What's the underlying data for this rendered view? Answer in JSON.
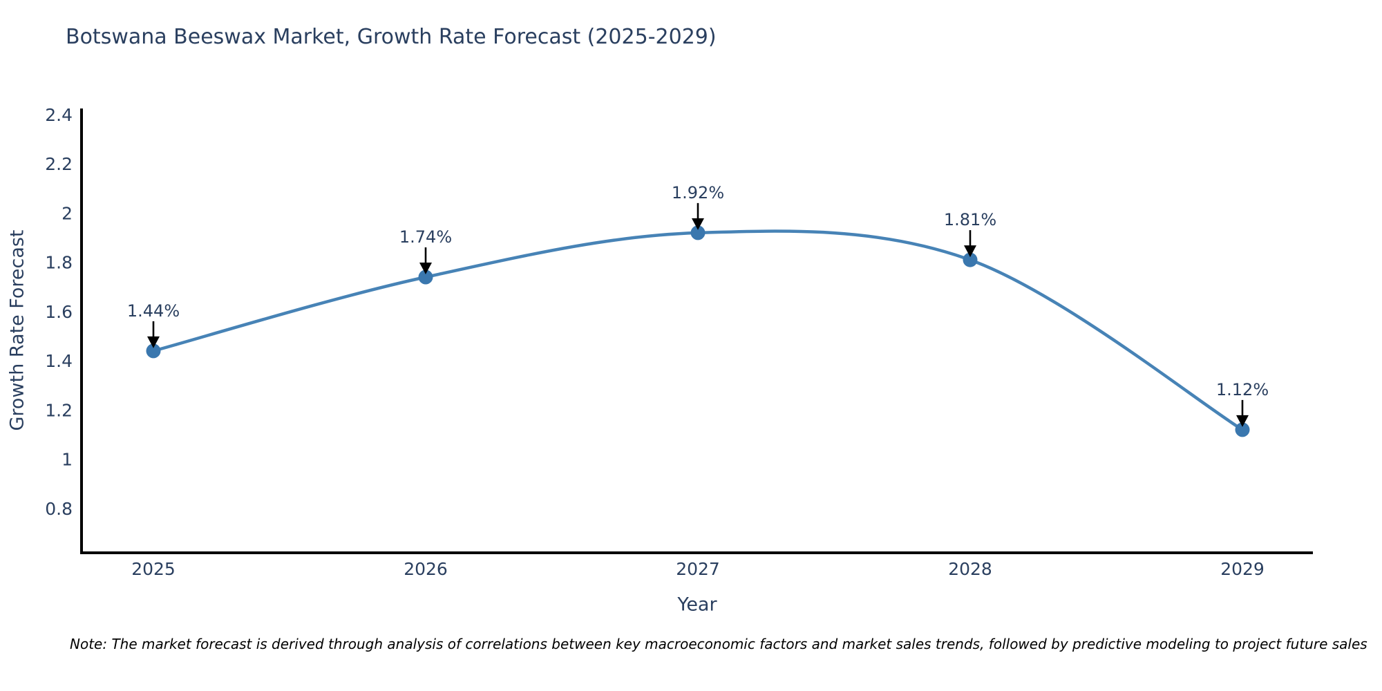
{
  "title": {
    "text": "Botswana Beeswax Market, Growth Rate Forecast (2025-2029)",
    "color": "#2a3f5f"
  },
  "chart_data": {
    "type": "line",
    "title": "Botswana Beeswax Market, Growth Rate Forecast (2025-2029)",
    "x": [
      2025,
      2026,
      2027,
      2028,
      2029
    ],
    "categories": [
      "2025",
      "2026",
      "2027",
      "2028",
      "2029"
    ],
    "series": [
      {
        "name": "Growth Rate Forecast",
        "values": [
          1.44,
          1.74,
          1.92,
          1.81,
          1.12
        ],
        "point_labels": [
          "1.44%",
          "1.74%",
          "1.92%",
          "1.81%",
          "1.12%"
        ]
      }
    ],
    "xlabel": "Year",
    "ylabel": "Growth Rate Forecast",
    "ylim": [
      0.62,
      2.45
    ],
    "yticks": {
      "values": [
        0.8,
        1,
        1.2,
        1.4,
        1.6,
        1.8,
        2,
        2.2,
        2.4
      ],
      "labels": [
        "0.8",
        "1",
        "1.2",
        "1.4",
        "1.6",
        "1.8",
        "2",
        "2.2",
        "2.4"
      ]
    },
    "grid": false,
    "legend_position": "none",
    "line_shape": "spline",
    "annotations_have_arrows": true,
    "colors": {
      "line": "#4783b6",
      "marker": "#3a77ae",
      "axis": "#000000",
      "tick_text": "#2a3f5f",
      "annotation_text": "#2a3f5f",
      "annotation_arrow": "#000000"
    }
  },
  "note": {
    "text": "Note: The market forecast is derived through analysis of correlations between key macroeconomic factors and market sales trends, followed by predictive modeling to project future sales"
  }
}
